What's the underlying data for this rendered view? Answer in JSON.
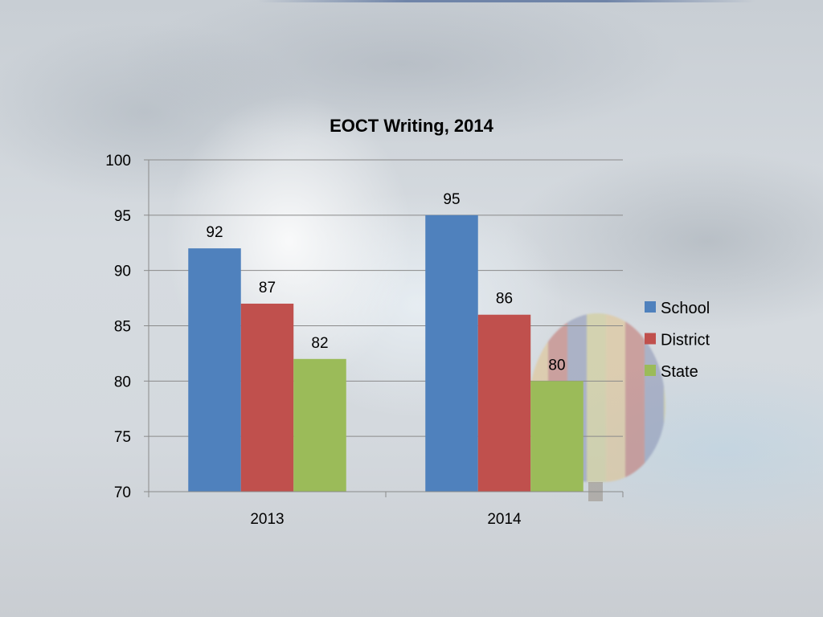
{
  "chart_data": {
    "type": "bar",
    "title": "EOCT Writing, 2014",
    "categories": [
      "2013",
      "2014"
    ],
    "series": [
      {
        "name": "School",
        "color": "#4f81bd",
        "values": [
          92,
          95
        ]
      },
      {
        "name": "District",
        "color": "#c0504d",
        "values": [
          87,
          86
        ]
      },
      {
        "name": "State",
        "color": "#9bbb59",
        "values": [
          82,
          80
        ]
      }
    ],
    "ylim": [
      70,
      100
    ],
    "yticks": [
      "70",
      "75",
      "80",
      "85",
      "90",
      "95",
      "100"
    ],
    "grid": true,
    "data_labels": true,
    "legend_position": "right"
  }
}
